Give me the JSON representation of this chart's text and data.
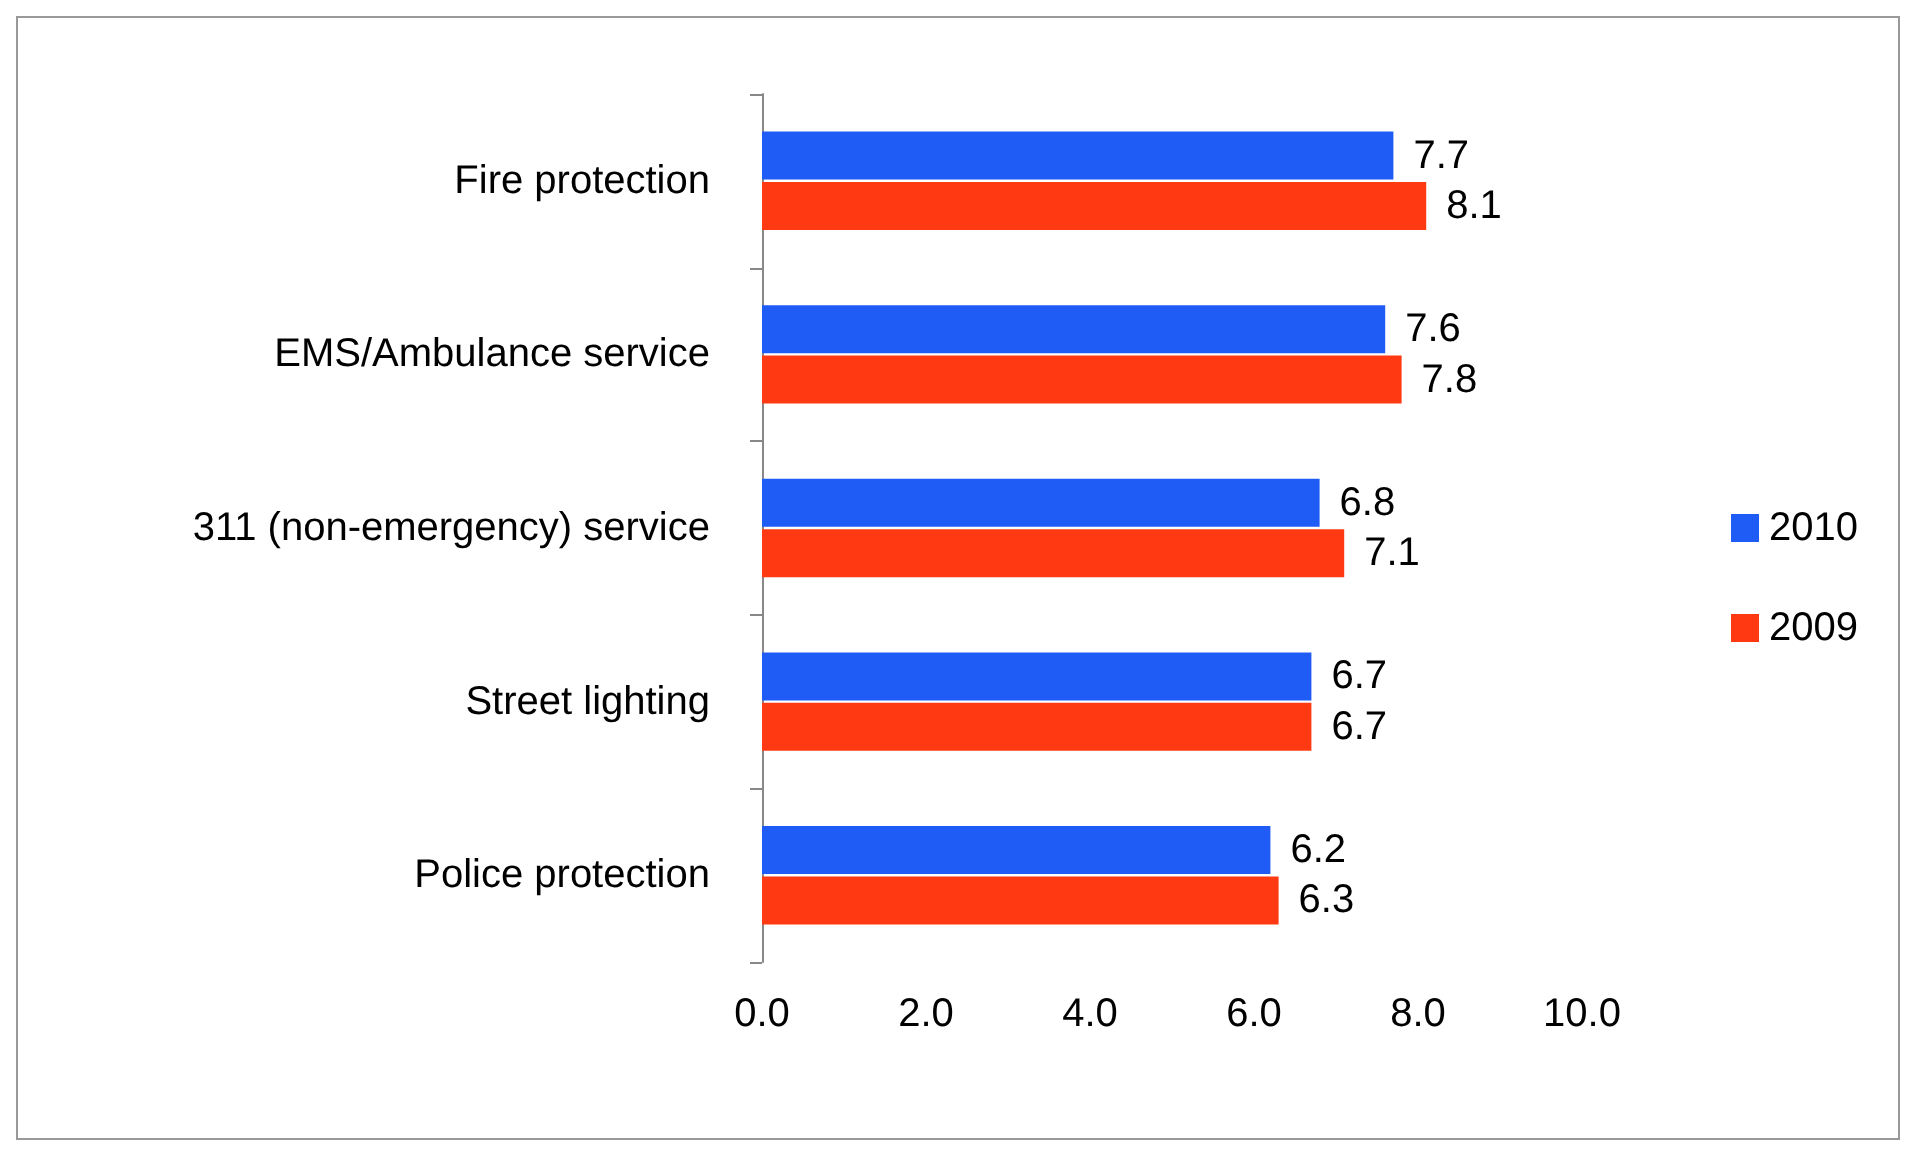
{
  "chart_data": {
    "type": "bar",
    "orientation": "horizontal",
    "categories": [
      "Fire protection",
      "EMS/Ambulance service",
      "311 (non-emergency) service",
      "Street lighting",
      "Police protection"
    ],
    "series": [
      {
        "name": "2010",
        "color": "#1f5cf5",
        "values": [
          7.7,
          7.6,
          6.8,
          6.7,
          6.2
        ]
      },
      {
        "name": "2009",
        "color": "#ff3a12",
        "values": [
          8.1,
          7.8,
          7.1,
          6.7,
          6.3
        ]
      }
    ],
    "xlim": [
      0,
      10
    ],
    "xticks": [
      {
        "value": 0,
        "label": "0.0"
      },
      {
        "value": 2,
        "label": "2.0"
      },
      {
        "value": 4,
        "label": "4.0"
      },
      {
        "value": 6,
        "label": "6.0"
      },
      {
        "value": 8,
        "label": "8.0"
      },
      {
        "value": 10,
        "label": "10.0"
      }
    ],
    "data_labels": true,
    "legend": "right",
    "grid": false
  }
}
